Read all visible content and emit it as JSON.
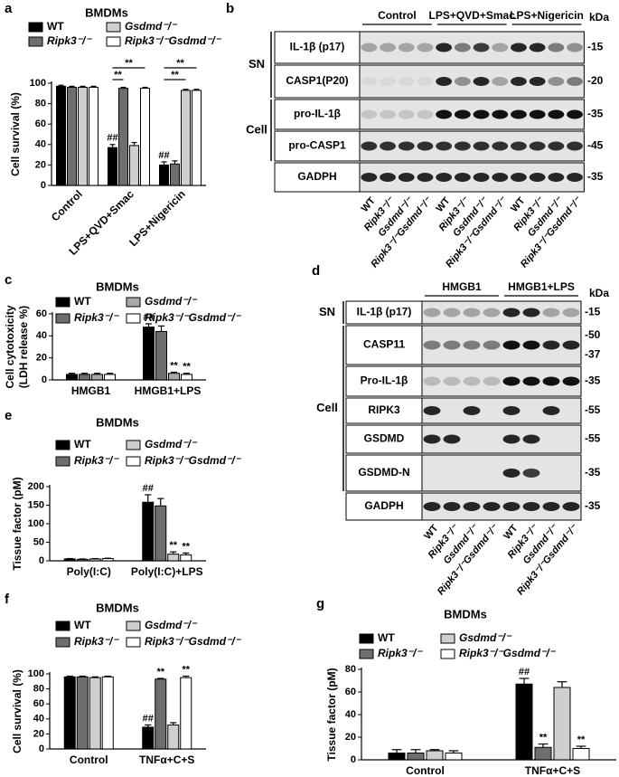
{
  "chart_data": [
    {
      "type": "bar",
      "label": "a",
      "title": "BMDMs",
      "ylabel": [
        "Cell survival (%)"
      ],
      "categories": [
        "Control",
        "LPS+QVD+Smac",
        "LPS+Nigericin"
      ],
      "series": [
        {
          "name": "WT",
          "color": "#000000",
          "values": [
            97,
            37,
            20
          ],
          "errors": [
            1,
            3,
            3
          ]
        },
        {
          "name": "Ripk3⁻/⁻",
          "color": "#6e6e6e",
          "values": [
            96,
            95,
            21
          ],
          "errors": [
            1,
            1,
            3
          ]
        },
        {
          "name": "Gsdmd⁻/⁻",
          "color": "#cfcfcf",
          "values": [
            96,
            39,
            93
          ],
          "errors": [
            1,
            3,
            1
          ]
        },
        {
          "name": "Ripk3⁻/⁻Gsdmd⁻/⁻",
          "color": "#ffffff",
          "values": [
            96,
            95,
            93
          ],
          "errors": [
            1,
            1,
            1
          ]
        }
      ],
      "ylim": [
        0,
        100
      ],
      "yticks": [
        0,
        20,
        40,
        60,
        80,
        100
      ],
      "annotations": [
        {
          "text": "##",
          "category": "LPS+QVD+Smac",
          "series": "WT"
        },
        {
          "text": "##",
          "category": "LPS+Nigericin",
          "series": "WT"
        },
        {
          "text": "**",
          "category": "LPS+QVD+Smac",
          "from": "WT",
          "to": "Ripk3⁻/⁻"
        },
        {
          "text": "**",
          "category": "LPS+QVD+Smac",
          "from": "WT",
          "to": "Ripk3⁻/⁻Gsdmd⁻/⁻"
        },
        {
          "text": "**",
          "category": "LPS+Nigericin",
          "from": "WT",
          "to": "Gsdmd⁻/⁻"
        },
        {
          "text": "**",
          "category": "LPS+Nigericin",
          "from": "WT",
          "to": "Ripk3⁻/⁻Gsdmd⁻/⁻"
        }
      ]
    },
    {
      "type": "bar",
      "label": "c",
      "title": "BMDMs",
      "ylabel": [
        "Cell cytotoxicity",
        "(LDH release %)"
      ],
      "categories": [
        "HMGB1",
        "HMGB1+LPS"
      ],
      "series": [
        {
          "name": "WT",
          "color": "#000000",
          "values": [
            5,
            48
          ],
          "errors": [
            1,
            3
          ]
        },
        {
          "name": "Ripk3⁻/⁻",
          "color": "#6e6e6e",
          "values": [
            5,
            44
          ],
          "errors": [
            1,
            5
          ]
        },
        {
          "name": "Gsdmd⁻/⁻",
          "color": "#a8a8a8",
          "values": [
            5,
            6
          ],
          "errors": [
            1,
            1
          ]
        },
        {
          "name": "Ripk3⁻/⁻Gsdmd⁻/⁻",
          "color": "#ffffff",
          "values": [
            5,
            5
          ],
          "errors": [
            1,
            1
          ]
        }
      ],
      "ylim": [
        0,
        60
      ],
      "yticks": [
        0,
        20,
        40,
        60
      ],
      "annotations": [
        {
          "text": "##",
          "category": "HMGB1+LPS",
          "series": "WT"
        },
        {
          "text": "**",
          "category": "HMGB1+LPS",
          "series": "Gsdmd⁻/⁻"
        },
        {
          "text": "**",
          "category": "HMGB1+LPS",
          "series": "Ripk3⁻/⁻Gsdmd⁻/⁻"
        }
      ]
    },
    {
      "type": "bar",
      "label": "e",
      "title": "BMDMs",
      "ylabel": [
        "Tissue factor (pM)"
      ],
      "categories": [
        "Poly(I:C)",
        "Poly(I:C)+LPS"
      ],
      "series": [
        {
          "name": "WT",
          "color": "#000000",
          "values": [
            5,
            158
          ],
          "errors": [
            1,
            20
          ]
        },
        {
          "name": "Ripk3⁻/⁻",
          "color": "#6e6e6e",
          "values": [
            4,
            148
          ],
          "errors": [
            1,
            20
          ]
        },
        {
          "name": "Gsdmd⁻/⁻",
          "color": "#cfcfcf",
          "values": [
            5,
            18
          ],
          "errors": [
            1,
            6
          ]
        },
        {
          "name": "Ripk3⁻/⁻Gsdmd⁻/⁻",
          "color": "#ffffff",
          "values": [
            6,
            16
          ],
          "errors": [
            1,
            5
          ]
        }
      ],
      "ylim": [
        0,
        200
      ],
      "yticks": [
        0,
        50,
        100,
        150,
        200
      ],
      "annotations": [
        {
          "text": "##",
          "category": "Poly(I:C)+LPS",
          "series": "WT"
        },
        {
          "text": "**",
          "category": "Poly(I:C)+LPS",
          "series": "Gsdmd⁻/⁻"
        },
        {
          "text": "**",
          "category": "Poly(I:C)+LPS",
          "series": "Ripk3⁻/⁻Gsdmd⁻/⁻"
        }
      ]
    },
    {
      "type": "bar",
      "label": "f",
      "title": "BMDMs",
      "ylabel": [
        "Cell survival (%)"
      ],
      "categories": [
        "Control",
        "TNFα+C+S"
      ],
      "series": [
        {
          "name": "WT",
          "color": "#000000",
          "values": [
            96,
            29
          ],
          "errors": [
            1,
            3
          ]
        },
        {
          "name": "Ripk3⁻/⁻",
          "color": "#6e6e6e",
          "values": [
            96,
            93
          ],
          "errors": [
            1,
            1
          ]
        },
        {
          "name": "Gsdmd⁻/⁻",
          "color": "#cfcfcf",
          "values": [
            95,
            32
          ],
          "errors": [
            1,
            3
          ]
        },
        {
          "name": "Ripk3⁻/⁻Gsdmd⁻/⁻",
          "color": "#ffffff",
          "values": [
            96,
            95
          ],
          "errors": [
            1,
            2
          ]
        }
      ],
      "ylim": [
        0,
        100
      ],
      "yticks": [
        0,
        20,
        40,
        60,
        80,
        100
      ],
      "annotations": [
        {
          "text": "##",
          "category": "TNFα+C+S",
          "series": "WT"
        },
        {
          "text": "**",
          "category": "TNFα+C+S",
          "series": "Ripk3⁻/⁻"
        },
        {
          "text": "**",
          "category": "TNFα+C+S",
          "series": "Ripk3⁻/⁻Gsdmd⁻/⁻"
        }
      ]
    },
    {
      "type": "bar",
      "label": "g",
      "title": "BMDMs",
      "ylabel": [
        "Tissue factor (pM)"
      ],
      "categories": [
        "Control",
        "TNFα+C+S"
      ],
      "series": [
        {
          "name": "WT",
          "color": "#000000",
          "values": [
            6,
            67
          ],
          "errors": [
            3,
            5
          ]
        },
        {
          "name": "Ripk3⁻/⁻",
          "color": "#6e6e6e",
          "values": [
            6,
            11
          ],
          "errors": [
            3,
            3
          ]
        },
        {
          "name": "Gsdmd⁻/⁻",
          "color": "#cfcfcf",
          "values": [
            8,
            64
          ],
          "errors": [
            1,
            5
          ]
        },
        {
          "name": "Ripk3⁻/⁻Gsdmd⁻/⁻",
          "color": "#ffffff",
          "values": [
            6,
            10
          ],
          "errors": [
            2,
            2
          ]
        }
      ],
      "ylim": [
        0,
        80
      ],
      "yticks": [
        0,
        20,
        40,
        60,
        80
      ],
      "annotations": [
        {
          "text": "##",
          "category": "TNFα+C+S",
          "series": "WT"
        },
        {
          "text": "**",
          "category": "TNFα+C+S",
          "series": "Ripk3⁻/⁻"
        },
        {
          "text": "**",
          "category": "TNFα+C+S",
          "series": "Ripk3⁻/⁻Gsdmd⁻/⁻"
        }
      ]
    }
  ],
  "blots": [
    {
      "label": "b",
      "kda_unit": "kDa",
      "groups": [
        "Control",
        "LPS+QVD+Smac",
        "LPS+Nigericin"
      ],
      "sections": [
        {
          "name": "SN",
          "rows": [
            {
              "label": "IL-1β (p17)",
              "kda": [
                "-15"
              ]
            },
            {
              "label": "CASP1(P20)",
              "kda": [
                "-20"
              ]
            }
          ]
        },
        {
          "name": "Cell",
          "rows": [
            {
              "label": "pro-IL-1β",
              "kda": [
                "-35"
              ]
            },
            {
              "label": "pro-CASP1",
              "kda": [
                "-45"
              ]
            }
          ]
        }
      ],
      "loading_control": {
        "label": "GADPH",
        "kda": [
          "-35"
        ]
      },
      "lanes": [
        "WT",
        "Ripk3⁻/⁻",
        "Gsdmd⁻/⁻",
        "Ripk3⁻/⁻Gsdmd⁻/⁻"
      ]
    },
    {
      "label": "d",
      "kda_unit": "kDa",
      "groups": [
        "HMGB1",
        "HMGB1+LPS"
      ],
      "sections": [
        {
          "name": "SN",
          "rows": [
            {
              "label": "IL-1β (p17)",
              "kda": [
                "-15"
              ]
            }
          ]
        },
        {
          "name": "Cell",
          "rows": [
            {
              "label": "CASP11",
              "kda": [
                "-50",
                "-37"
              ]
            },
            {
              "label": "Pro-IL-1β",
              "kda": [
                "-35"
              ]
            },
            {
              "label": "RIPK3",
              "kda": [
                "-55"
              ]
            },
            {
              "label": "GSDMD",
              "kda": [
                "-55"
              ]
            },
            {
              "label": "GSDMD-N",
              "kda": [
                "-35"
              ]
            }
          ]
        }
      ],
      "loading_control": {
        "label": "GADPH",
        "kda": [
          "-35"
        ]
      },
      "lanes": [
        "WT",
        "Ripk3⁻/⁻",
        "Gsdmd⁻/⁻",
        "Ripk3⁻/⁻Gsdmd⁻/⁻"
      ]
    }
  ]
}
